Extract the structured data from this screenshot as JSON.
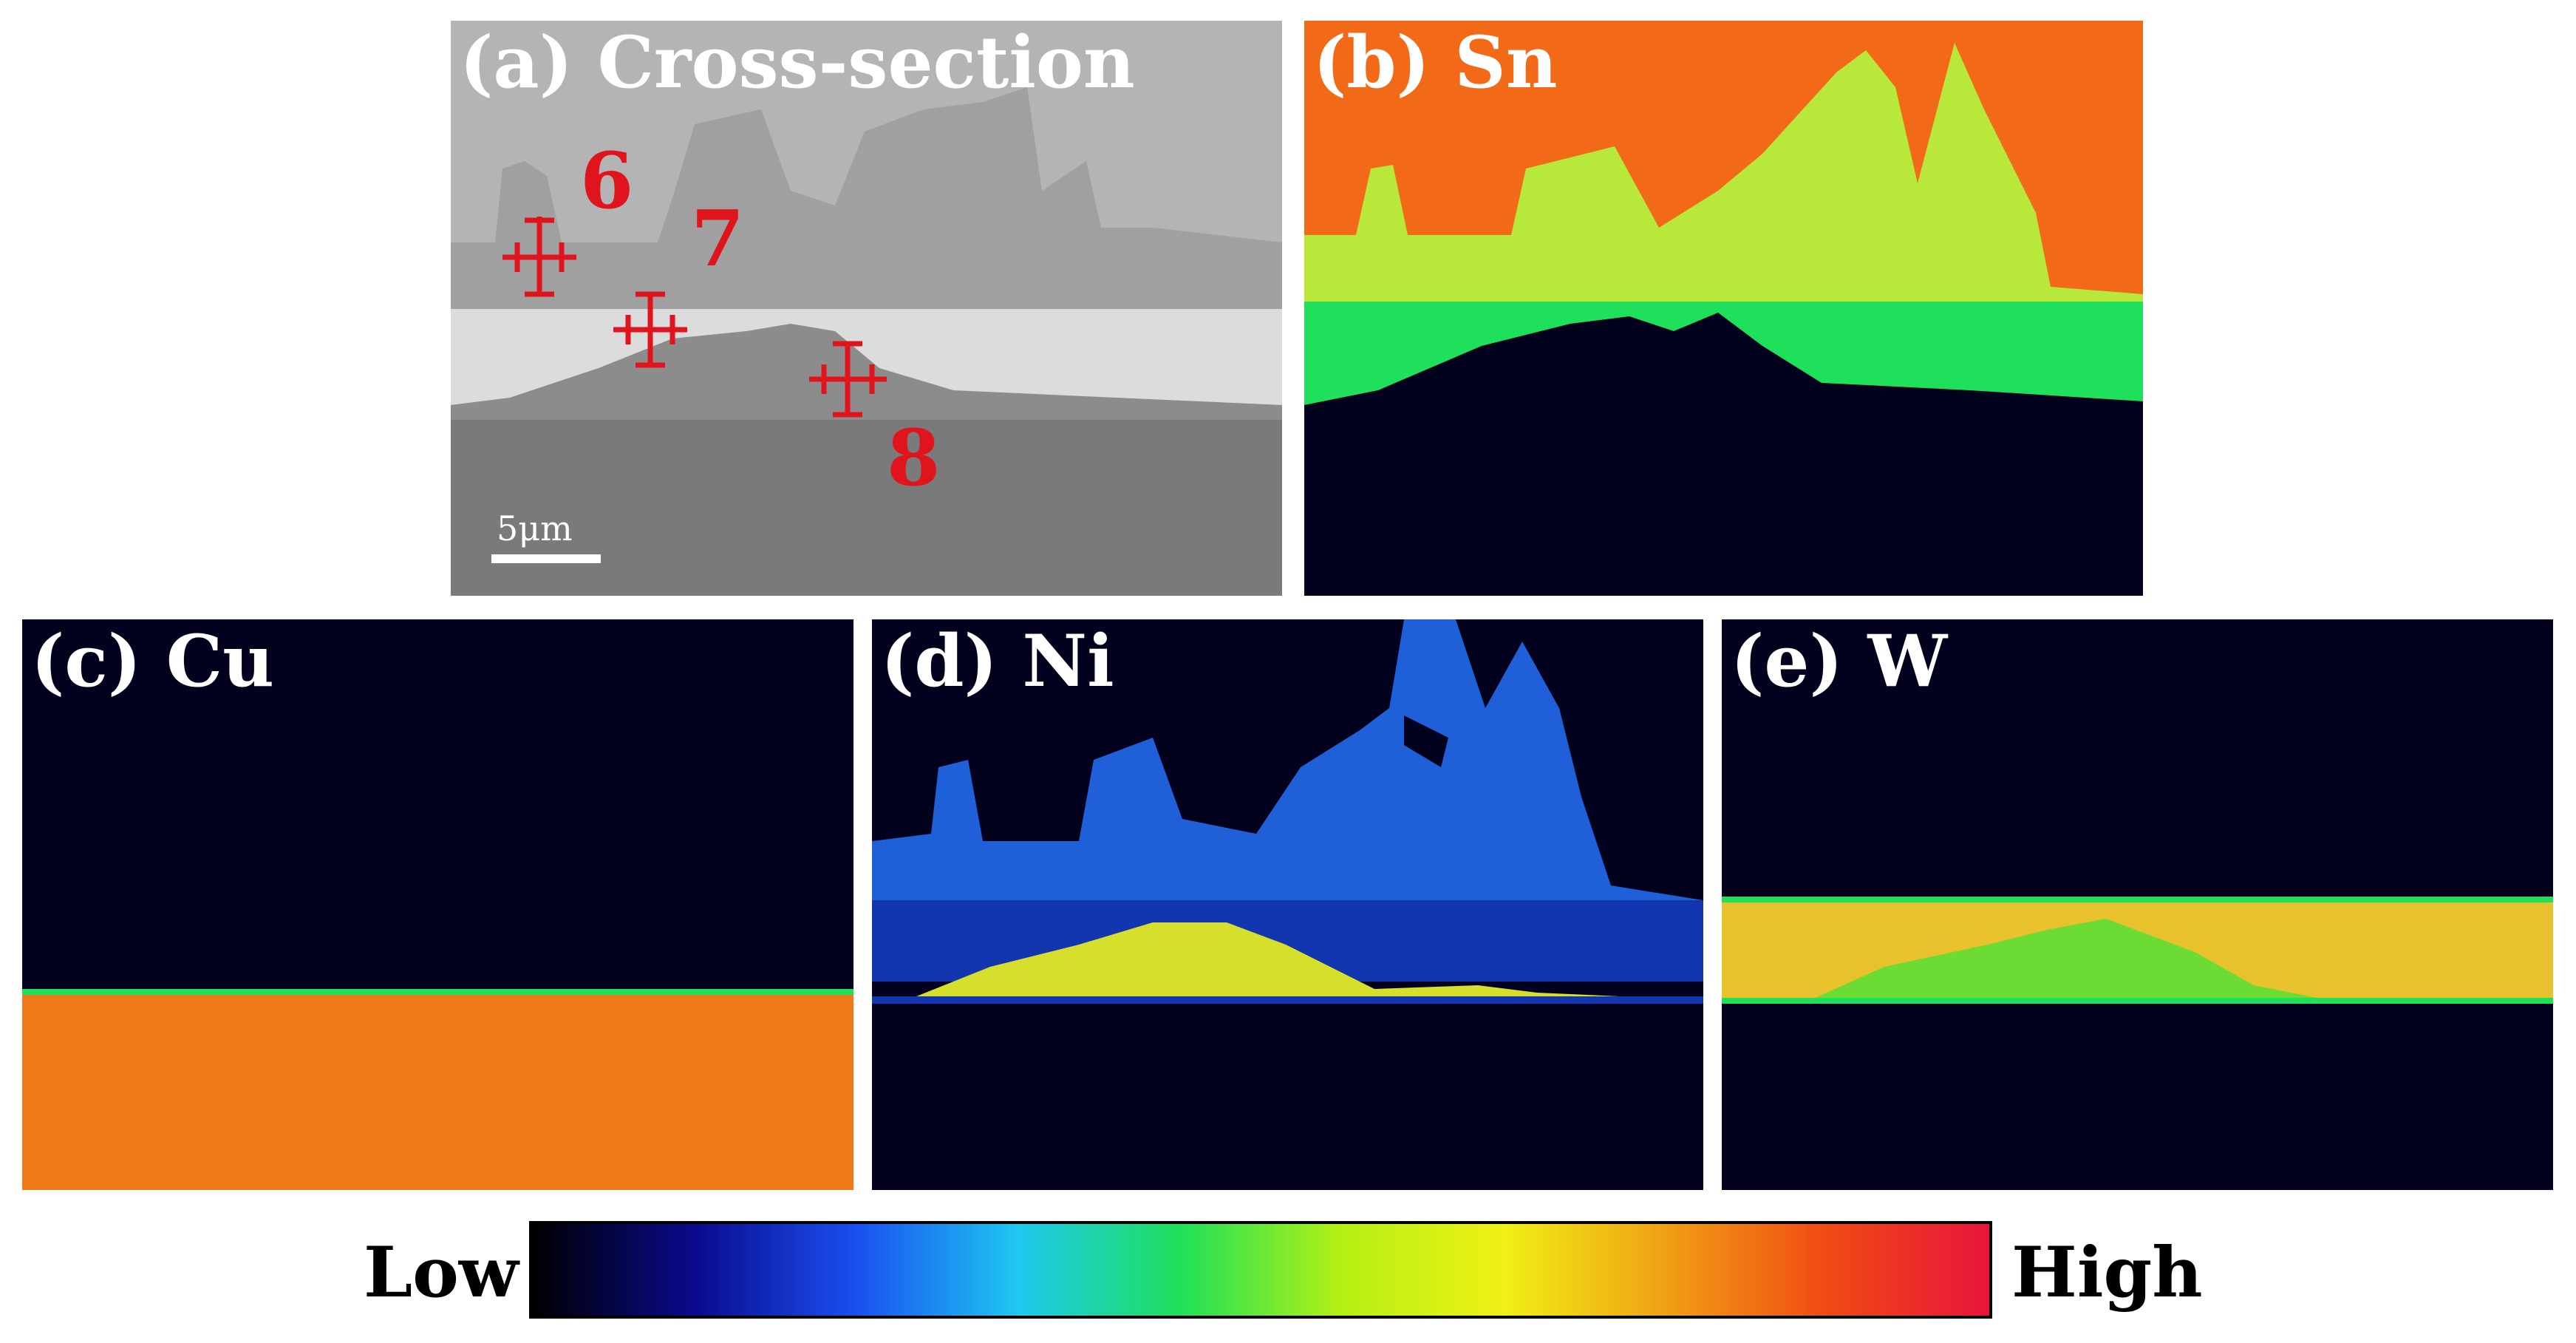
{
  "colors": {
    "sem_top": "#b4b4b4",
    "sem_peaks": "#a0a0a0",
    "sem_band": "#dcdcdc",
    "sem_mound": "#8c8c8c",
    "sem_bottom": "#7a7a7a",
    "map_background": "#02021f",
    "marker": "#e0141c",
    "sn_orange": "#f26a18",
    "sn_yellow": "#b8e83a",
    "sn_green": "#1ee05a",
    "cu_orange": "#f07a1a",
    "ni_blue": "#1f5fd8",
    "ni_darkblue": "#1236b0",
    "ni_yellow": "#d6e02c",
    "w_yellow": "#e8c22c",
    "w_green": "#6cdc34"
  },
  "panels": {
    "a": {
      "label": "(a) Cross-section",
      "scale_text": "5μm"
    },
    "b": {
      "label": "(b) Sn"
    },
    "c": {
      "label": "(c) Cu"
    },
    "d": {
      "label": "(d) Ni"
    },
    "e": {
      "label": "(e) W"
    }
  },
  "markers": [
    {
      "id": "6",
      "label": "6"
    },
    {
      "id": "7",
      "label": "7"
    },
    {
      "id": "8",
      "label": "8"
    }
  ],
  "colorbar": {
    "low_label": "Low",
    "high_label": "High",
    "stops": [
      "#000000",
      "#0a0a8c",
      "#1a4ff0",
      "#1ec8f0",
      "#1ee05a",
      "#b4f014",
      "#f0f014",
      "#f0a014",
      "#f04a14",
      "#e8143c"
    ]
  }
}
